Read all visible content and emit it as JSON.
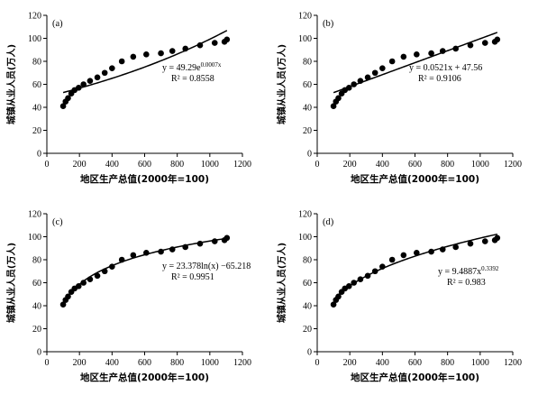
{
  "chart_data": [
    {
      "panel_label": "(a)",
      "type": "scatter",
      "fit_type": "exponential",
      "fit_params": {
        "a": 49.29,
        "b": 0.0007
      },
      "equation_main": "y = 49.29e",
      "equation_sup": "0.0007x",
      "r2_text": "R² = 0.8558",
      "xlabel": "地区生产总值(2000年=100)",
      "ylabel": "城镇从业人员(万人)",
      "xlim": [
        0,
        1200
      ],
      "ylim": [
        0,
        120
      ],
      "xticks": [
        0,
        200,
        400,
        600,
        800,
        1000,
        1200
      ],
      "yticks": [
        0,
        20,
        40,
        60,
        80,
        100,
        120
      ],
      "x": [
        100,
        115,
        130,
        150,
        170,
        195,
        225,
        265,
        310,
        355,
        400,
        460,
        530,
        610,
        700,
        770,
        850,
        940,
        1030,
        1090,
        1105
      ],
      "y": [
        41,
        45,
        48,
        52,
        55,
        57,
        60,
        63,
        66,
        70,
        74,
        80,
        84,
        86,
        87,
        89,
        91,
        94,
        96,
        97,
        99
      ]
    },
    {
      "panel_label": "(b)",
      "type": "scatter",
      "fit_type": "linear",
      "fit_params": {
        "a": 0.0521,
        "b": 47.56
      },
      "equation_main": "y = 0.0521x + 47.56",
      "equation_sup": "",
      "r2_text": "R² = 0.9106",
      "xlabel": "地区生产总值(2000年=100)",
      "ylabel": "城镇从业人员(万人)",
      "xlim": [
        0,
        1200
      ],
      "ylim": [
        0,
        120
      ],
      "xticks": [
        0,
        200,
        400,
        600,
        800,
        1000,
        1200
      ],
      "yticks": [
        0,
        20,
        40,
        60,
        80,
        100,
        120
      ],
      "x": [
        100,
        115,
        130,
        150,
        170,
        195,
        225,
        265,
        310,
        355,
        400,
        460,
        530,
        610,
        700,
        770,
        850,
        940,
        1030,
        1090,
        1105
      ],
      "y": [
        41,
        45,
        48,
        52,
        55,
        57,
        60,
        63,
        66,
        70,
        74,
        80,
        84,
        86,
        87,
        89,
        91,
        94,
        96,
        97,
        99
      ]
    },
    {
      "panel_label": "(c)",
      "type": "scatter",
      "fit_type": "logarithmic",
      "fit_params": {
        "a": 23.378,
        "b": -65.218
      },
      "equation_main": "y = 23.378ln(x) −65.218",
      "equation_sup": "",
      "r2_text": "R² = 0.9951",
      "xlabel": "地区生产总值(2000年=100)",
      "ylabel": "城镇从业人员(万人)",
      "xlim": [
        0,
        1200
      ],
      "ylim": [
        0,
        120
      ],
      "xticks": [
        0,
        200,
        400,
        600,
        800,
        1000,
        1200
      ],
      "yticks": [
        0,
        20,
        40,
        60,
        80,
        100,
        120
      ],
      "x": [
        100,
        115,
        130,
        150,
        170,
        195,
        225,
        265,
        310,
        355,
        400,
        460,
        530,
        610,
        700,
        770,
        850,
        940,
        1030,
        1090,
        1105
      ],
      "y": [
        41,
        45,
        48,
        52,
        55,
        57,
        60,
        63,
        66,
        70,
        74,
        80,
        84,
        86,
        87,
        89,
        91,
        94,
        96,
        97,
        99
      ]
    },
    {
      "panel_label": "(d)",
      "type": "scatter",
      "fit_type": "power",
      "fit_params": {
        "a": 9.4887,
        "b": 0.3392
      },
      "equation_main": "y = 9.4887x",
      "equation_sup": "0.3392",
      "r2_text": "R² = 0.983",
      "xlabel": "地区生产总值(2000年=100)",
      "ylabel": "城镇从业人员(万人)",
      "xlim": [
        0,
        1200
      ],
      "ylim": [
        0,
        120
      ],
      "xticks": [
        0,
        200,
        400,
        600,
        800,
        1000,
        1200
      ],
      "yticks": [
        0,
        20,
        40,
        60,
        80,
        100,
        120
      ],
      "x": [
        100,
        115,
        130,
        150,
        170,
        195,
        225,
        265,
        310,
        355,
        400,
        460,
        530,
        610,
        700,
        770,
        850,
        940,
        1030,
        1090,
        1105
      ],
      "y": [
        41,
        45,
        48,
        52,
        55,
        57,
        60,
        63,
        66,
        70,
        74,
        80,
        84,
        86,
        87,
        89,
        91,
        94,
        96,
        97,
        99
      ]
    }
  ]
}
